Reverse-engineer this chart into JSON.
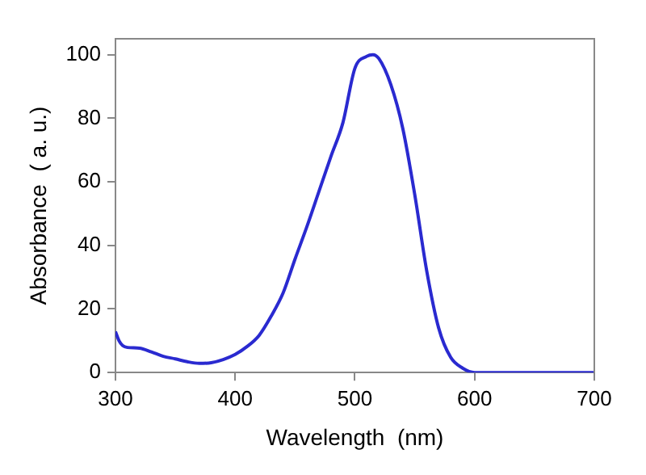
{
  "chart_data": {
    "type": "line",
    "xlabel": "Wavelength  (nm)",
    "ylabel": "Absorbance  ( a. u.)",
    "xlim": [
      300,
      700
    ],
    "xticks": [
      300,
      400,
      500,
      600,
      700
    ],
    "ylim": [
      0,
      105
    ],
    "yticks": [
      0,
      20,
      40,
      60,
      80,
      100
    ],
    "grid": false,
    "legend": false,
    "marker": "none",
    "line_style": "solid",
    "series": [
      {
        "color": "#2a2ad0",
        "x": [
          300,
          303,
          306,
          310,
          320,
          330,
          340,
          350,
          360,
          370,
          380,
          390,
          400,
          410,
          420,
          430,
          440,
          450,
          460,
          470,
          480,
          490,
          500,
          510,
          515,
          520,
          530,
          540,
          550,
          560,
          570,
          580,
          590,
          600,
          610,
          650,
          700
        ],
        "values": [
          12.9,
          10,
          8.5,
          7.9,
          7.7,
          6.5,
          5.1,
          4.3,
          3.4,
          2.9,
          3.1,
          4.1,
          5.7,
          8.2,
          11.7,
          17.7,
          25,
          35.7,
          46,
          57,
          68,
          78.6,
          95.7,
          99.5,
          100,
          98.8,
          90.6,
          76.8,
          56,
          32,
          14,
          4.8,
          1.4,
          0,
          0,
          0,
          0
        ]
      }
    ]
  }
}
